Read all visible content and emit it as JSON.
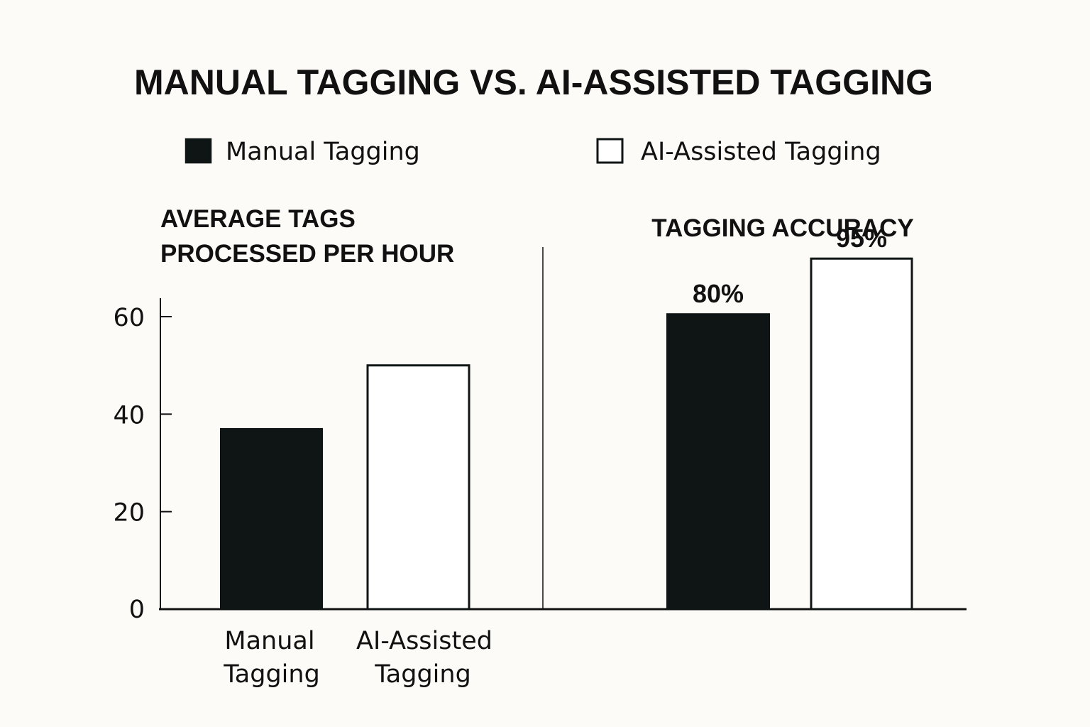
{
  "title": "MANUAL TAGGING VS. AI-ASSISTED TAGGING",
  "legend": [
    {
      "label": "Manual Tagging",
      "color": "#0f1514",
      "filled": true
    },
    {
      "label": "AI-Assisted Tagging",
      "color": "#ffffff",
      "filled": false
    }
  ],
  "chart_data": [
    {
      "type": "bar",
      "title": [
        "AVERAGE TAGS",
        "PROCESSED PER HOUR"
      ],
      "categories": [
        [
          "Manual",
          "Tagging"
        ],
        [
          "AI-Assisted",
          "Tagging"
        ]
      ],
      "values": [
        37,
        50
      ],
      "ylim": [
        0,
        60
      ],
      "yticks": [
        0,
        20,
        40,
        60
      ],
      "grid": false,
      "legend": "top"
    },
    {
      "type": "bar",
      "title": "TAGGING ACCURACY",
      "categories": [
        "Manual Tagging",
        "AI-Assisted Tagging"
      ],
      "values": [
        80,
        95
      ],
      "data_labels": [
        "80%",
        "95%"
      ],
      "grid": false
    }
  ]
}
